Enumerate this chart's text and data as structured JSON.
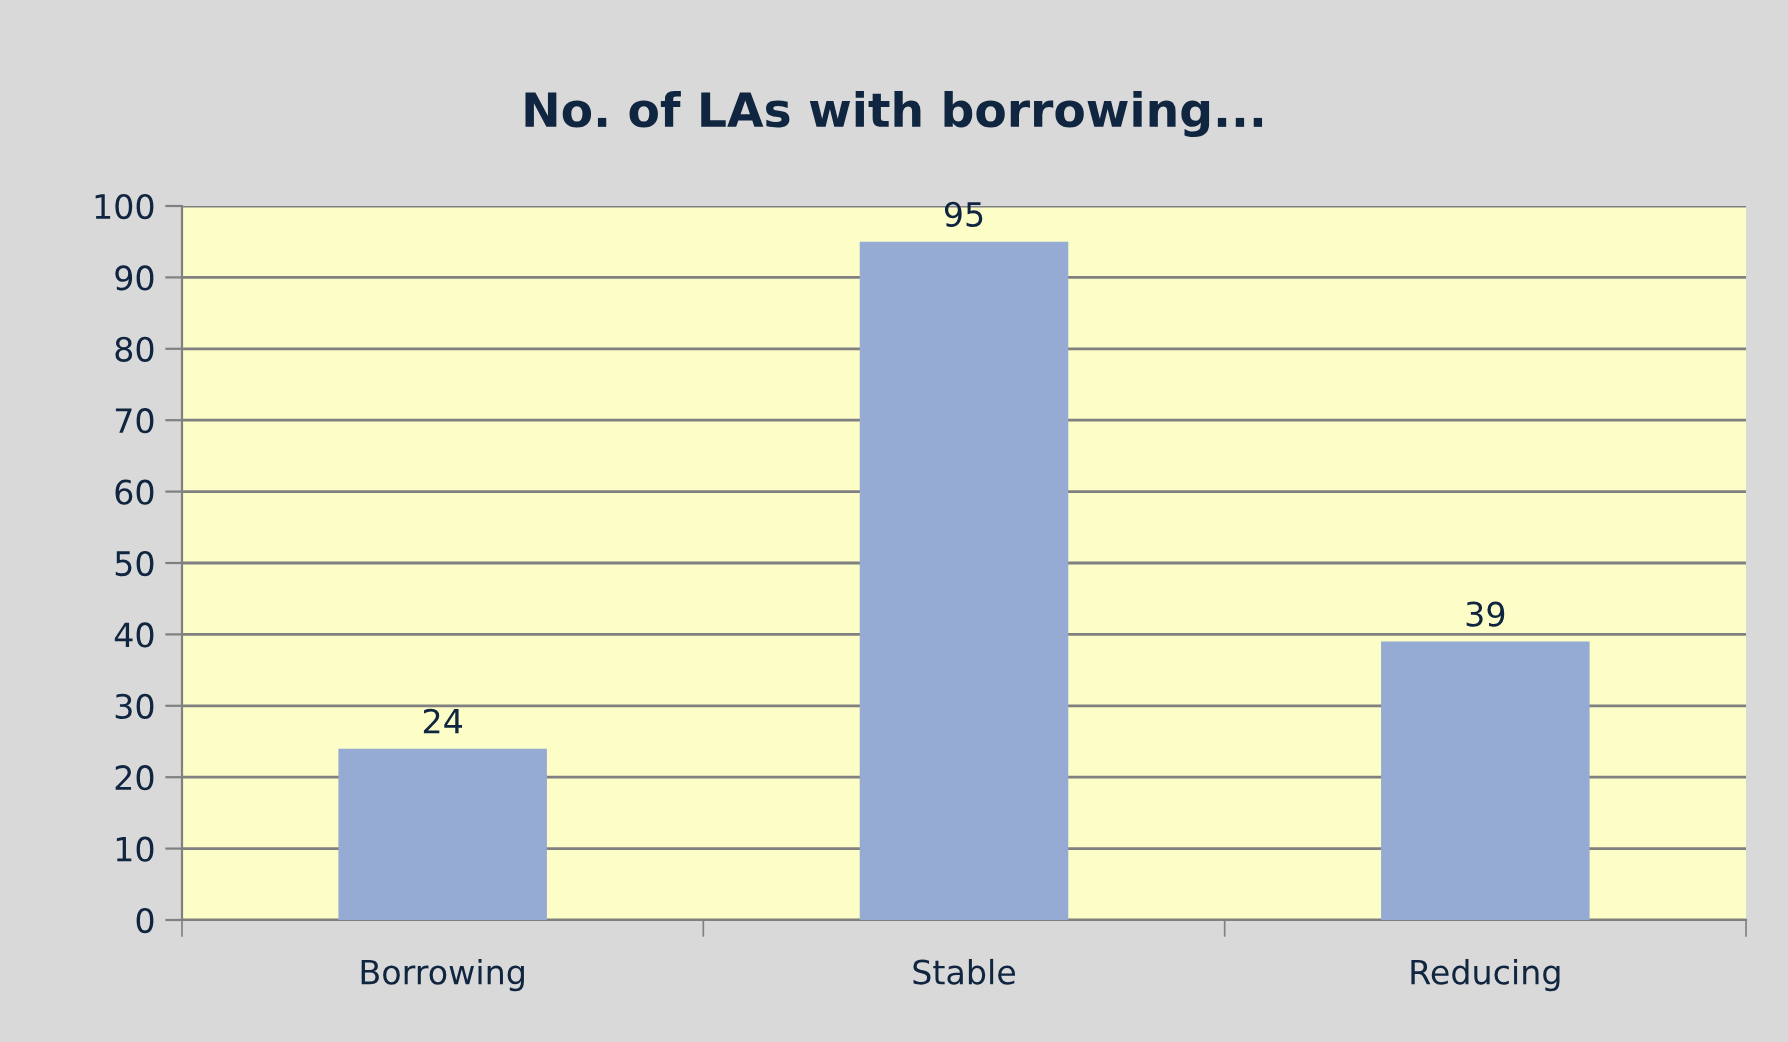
{
  "chart_data": {
    "type": "bar",
    "title": "No. of LAs with borrowing...",
    "categories": [
      "Borrowing",
      "Stable",
      "Reducing"
    ],
    "values": [
      24,
      95,
      39
    ],
    "color": "#95abd4",
    "ylim": [
      0,
      100
    ],
    "yticks": [
      0,
      10,
      20,
      30,
      40,
      50,
      60,
      70,
      80,
      90,
      100
    ],
    "grid": "y",
    "data_labels": true,
    "legend": false
  }
}
